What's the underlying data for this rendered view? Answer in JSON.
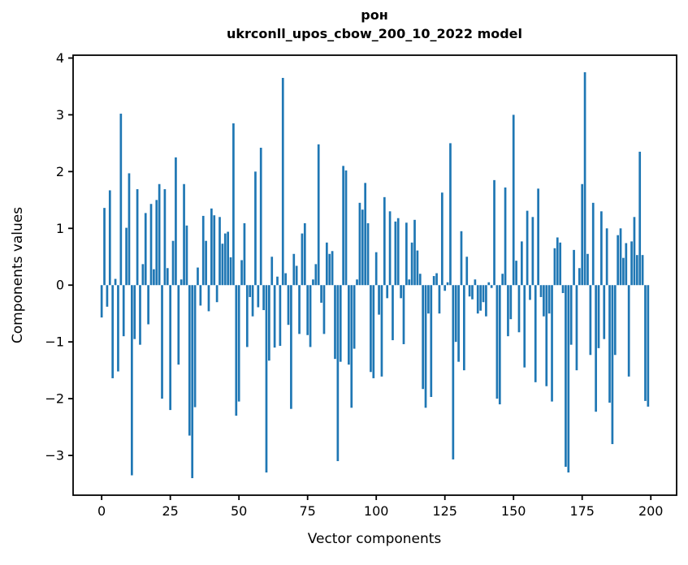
{
  "chart_data": {
    "type": "bar",
    "title_line1": "рон",
    "title_line2": "ukrconll_upos_cbow_200_10_2022 model",
    "xlabel": "Vector components",
    "ylabel": "Components values",
    "bar_color": "#1f77b4",
    "spine_color": "#000000",
    "background_color": "#ffffff",
    "legend": "none",
    "grid": false,
    "xlim": [
      -10.4,
      209.4
    ],
    "ylim": [
      -3.7,
      4.05
    ],
    "x_ticks": [
      0,
      25,
      50,
      75,
      100,
      125,
      150,
      175,
      200
    ],
    "y_ticks": [
      -3,
      -2,
      -1,
      0,
      1,
      2,
      3,
      4
    ],
    "bar_width_units": 0.8,
    "n_components": 200,
    "values": [
      -0.57,
      1.36,
      -0.38,
      1.67,
      -1.64,
      0.11,
      -1.52,
      3.02,
      -0.9,
      1.01,
      1.97,
      -3.35,
      -0.95,
      1.69,
      -1.05,
      0.37,
      1.27,
      -0.69,
      1.43,
      0.28,
      1.5,
      1.78,
      -2.0,
      1.69,
      0.3,
      -2.2,
      0.78,
      2.25,
      -1.4,
      0.1,
      1.78,
      1.05,
      -2.65,
      -3.4,
      -2.15,
      0.31,
      -0.36,
      1.22,
      0.78,
      -0.46,
      1.35,
      1.23,
      -0.3,
      1.2,
      0.73,
      0.91,
      0.94,
      0.49,
      2.85,
      -2.3,
      -2.05,
      0.44,
      1.09,
      -1.09,
      -0.21,
      -0.55,
      2.0,
      -0.39,
      2.42,
      -0.44,
      -3.3,
      -1.33,
      0.5,
      -1.1,
      0.15,
      -1.07,
      3.65,
      0.21,
      -0.7,
      -2.18,
      0.55,
      0.34,
      -0.86,
      0.91,
      1.09,
      -0.88,
      -1.09,
      0.1,
      0.37,
      2.48,
      -0.31,
      -0.86,
      0.75,
      0.55,
      0.6,
      -1.3,
      -3.1,
      -1.35,
      2.1,
      2.02,
      -1.4,
      -2.16,
      -1.12,
      0.1,
      1.45,
      1.33,
      1.8,
      1.09,
      -1.53,
      -1.64,
      0.58,
      -0.52,
      -1.61,
      1.55,
      -0.23,
      1.3,
      -0.97,
      1.12,
      1.18,
      -0.23,
      -1.04,
      1.1,
      0.1,
      0.75,
      1.15,
      0.61,
      0.2,
      -1.83,
      -2.16,
      -0.5,
      -1.97,
      0.16,
      0.21,
      -0.5,
      1.63,
      -0.1,
      0.05,
      2.5,
      -3.07,
      -1.0,
      -1.35,
      0.95,
      -1.5,
      0.5,
      -0.2,
      -0.25,
      0.1,
      -0.5,
      -0.45,
      -0.3,
      -0.55,
      0.05,
      -0.05,
      1.85,
      -2.0,
      -2.1,
      0.2,
      1.72,
      -0.9,
      -0.6,
      3.0,
      0.43,
      -0.83,
      0.77,
      -1.45,
      1.31,
      -0.26,
      1.2,
      -1.71,
      1.7,
      -0.21,
      -0.55,
      -1.78,
      -0.5,
      -2.05,
      0.65,
      0.84,
      0.75,
      -0.14,
      -3.2,
      -3.3,
      -1.05,
      0.62,
      -1.5,
      0.3,
      1.78,
      3.75,
      0.55,
      -1.23,
      1.45,
      -2.23,
      -1.11,
      1.3,
      -0.95,
      1.0,
      -2.07,
      -2.8,
      -1.23,
      0.88,
      1.0,
      0.48,
      0.74,
      -1.61,
      0.77,
      1.2,
      0.53,
      2.35,
      0.53,
      -2.04,
      -2.14
    ]
  }
}
